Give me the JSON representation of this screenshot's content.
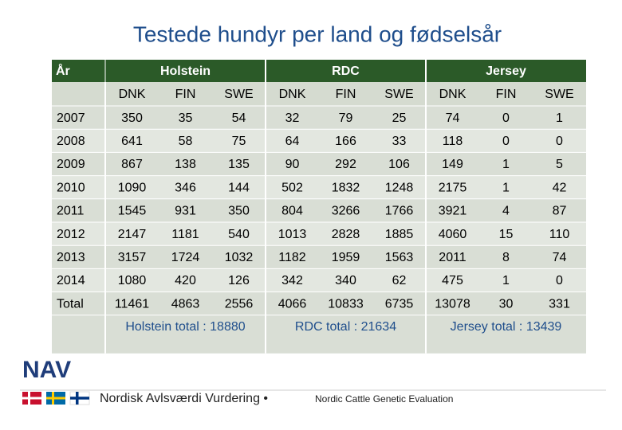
{
  "title": "Testede hundyr per land og fødselsår",
  "table": {
    "header": [
      "År",
      "Holstein",
      "RDC",
      "Jersey"
    ],
    "subheader": [
      "DNK",
      "FIN",
      "SWE",
      "DNK",
      "FIN",
      "SWE",
      "DNK",
      "FIN",
      "SWE"
    ],
    "rows": [
      [
        "2007",
        350,
        35,
        54,
        32,
        79,
        25,
        74,
        0,
        1
      ],
      [
        "2008",
        641,
        58,
        75,
        64,
        166,
        33,
        118,
        0,
        0
      ],
      [
        "2009",
        867,
        138,
        135,
        90,
        292,
        106,
        149,
        1,
        5
      ],
      [
        "2010",
        1090,
        346,
        144,
        502,
        1832,
        1248,
        2175,
        1,
        42
      ],
      [
        "2011",
        1545,
        931,
        350,
        804,
        3266,
        1766,
        3921,
        4,
        87
      ],
      [
        "2012",
        2147,
        1181,
        540,
        1013,
        2828,
        1885,
        4060,
        15,
        110
      ],
      [
        "2013",
        3157,
        1724,
        1032,
        1182,
        1959,
        1563,
        2011,
        8,
        74
      ],
      [
        "2014",
        1080,
        420,
        126,
        342,
        340,
        62,
        475,
        1,
        0
      ],
      [
        "Total",
        11461,
        4863,
        2556,
        4066,
        10833,
        6735,
        13078,
        30,
        331
      ]
    ],
    "group_totals": [
      "Holstein total : 18880",
      "RDC total : 21634",
      "Jersey total : 13439"
    ]
  },
  "footer": {
    "logo": "NAV",
    "text": "Nordisk Avlsværdi Vurdering •",
    "subtext": "Nordic Cattle Genetic Evaluation"
  }
}
